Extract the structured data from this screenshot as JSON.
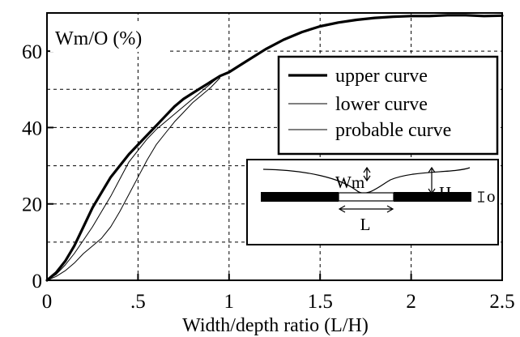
{
  "chart_data": {
    "type": "line",
    "ylabel": "Wm/O (%)",
    "xlabel": "Width/depth  ratio (L/H)",
    "xlim": [
      0,
      2.5
    ],
    "ylim": [
      0,
      70
    ],
    "xticks": [
      0,
      0.5,
      1,
      1.5,
      2,
      2.5
    ],
    "xtick_labels": [
      "0",
      ".5",
      "1",
      "1.5",
      "2",
      "2.5"
    ],
    "yticks": [
      0,
      20,
      40,
      60
    ],
    "ytick_labels": [
      "0",
      "20",
      "40",
      "60"
    ],
    "grid": true,
    "legend_position": "top-right",
    "series": [
      {
        "name": "upper curve",
        "style": "thick",
        "x": [
          0,
          0.05,
          0.1,
          0.15,
          0.2,
          0.25,
          0.3,
          0.35,
          0.4,
          0.45,
          0.5,
          0.55,
          0.6,
          0.65,
          0.7,
          0.75,
          0.8,
          0.85,
          0.9,
          0.95,
          1.0,
          1.05,
          1.1,
          1.15,
          1.2,
          1.3,
          1.4,
          1.5,
          1.6,
          1.7,
          1.8,
          1.9,
          2.0,
          2.1,
          2.2,
          2.3,
          2.4,
          2.5
        ],
        "values": [
          0,
          2,
          5,
          9,
          14,
          19,
          23,
          27,
          30,
          33,
          35.5,
          38,
          40.5,
          43,
          45.5,
          47.5,
          49,
          50.5,
          52,
          53.5,
          54.5,
          56,
          57.5,
          59,
          60.5,
          63,
          65,
          66.5,
          67.5,
          68.2,
          68.7,
          69,
          69.2,
          69.2,
          69.4,
          69.4,
          69.2,
          69.3
        ]
      },
      {
        "name": "lower curve",
        "style": "thin",
        "x": [
          0,
          0.05,
          0.1,
          0.15,
          0.2,
          0.25,
          0.3,
          0.35,
          0.4,
          0.45,
          0.5,
          0.55,
          0.6,
          0.65,
          0.7,
          0.75,
          0.8,
          0.85,
          0.9,
          0.95
        ],
        "values": [
          0,
          1,
          2.5,
          4.5,
          7,
          9,
          11,
          14,
          18,
          22.5,
          27,
          31.5,
          35.5,
          38.5,
          41.5,
          44,
          46.5,
          48.5,
          50.5,
          53
        ]
      },
      {
        "name": "probable curve",
        "style": "thin",
        "x": [
          0,
          0.05,
          0.1,
          0.15,
          0.2,
          0.25,
          0.3,
          0.35,
          0.4,
          0.45,
          0.5,
          0.55,
          0.6,
          0.65,
          0.7,
          0.75,
          0.8,
          0.85,
          0.9,
          0.95
        ],
        "values": [
          0,
          1.5,
          4,
          7,
          10.5,
          14,
          18,
          22,
          26.5,
          31,
          34,
          37,
          39.5,
          41.5,
          43.5,
          45.5,
          47.5,
          49.5,
          51.5,
          53.5
        ]
      }
    ],
    "inset": {
      "labels": {
        "wm": "Wm",
        "h": "H",
        "o": "o",
        "l": "L"
      }
    }
  }
}
